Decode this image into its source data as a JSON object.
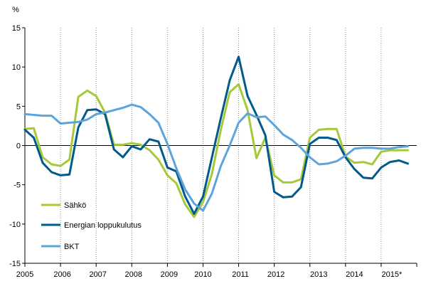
{
  "chart_data": {
    "type": "line",
    "title": "",
    "ylabel": "%",
    "xlabel": "",
    "ylim": [
      -15,
      15
    ],
    "yticks": [
      15,
      10,
      5,
      0,
      -5,
      -10,
      -15
    ],
    "grid": "vertical dotted lines at year boundaries, solid zero line",
    "x_years": [
      "2005",
      "2006",
      "2007",
      "2008",
      "2009",
      "2010",
      "2011",
      "2012",
      "2013",
      "2014",
      "2015*"
    ],
    "x_start": 2005.0,
    "x_end": 2016.0,
    "legend_position": "lower-left",
    "series": [
      {
        "name": "Sähkö",
        "color": "#A5C93A",
        "points": [
          [
            2005.0,
            2.1
          ],
          [
            2005.25,
            2.2
          ],
          [
            2005.5,
            -1.5
          ],
          [
            2005.75,
            -2.4
          ],
          [
            2006.0,
            -2.6
          ],
          [
            2006.25,
            -1.8
          ],
          [
            2006.5,
            6.2
          ],
          [
            2006.75,
            7.0
          ],
          [
            2007.0,
            6.3
          ],
          [
            2007.25,
            4.2
          ],
          [
            2007.5,
            0.1
          ],
          [
            2007.75,
            0.1
          ],
          [
            2008.0,
            0.3
          ],
          [
            2008.25,
            0.1
          ],
          [
            2008.5,
            -0.6
          ],
          [
            2008.75,
            -1.8
          ],
          [
            2009.0,
            -3.8
          ],
          [
            2009.25,
            -4.8
          ],
          [
            2009.5,
            -7.5
          ],
          [
            2009.75,
            -9.1
          ],
          [
            2010.0,
            -7.2
          ],
          [
            2010.25,
            -3.6
          ],
          [
            2010.5,
            2.0
          ],
          [
            2010.75,
            6.8
          ],
          [
            2011.0,
            7.8
          ],
          [
            2011.25,
            4.5
          ],
          [
            2011.5,
            -1.6
          ],
          [
            2011.75,
            1.0
          ],
          [
            2012.0,
            -3.8
          ],
          [
            2012.25,
            -4.7
          ],
          [
            2012.5,
            -4.7
          ],
          [
            2012.75,
            -4.3
          ],
          [
            2013.0,
            1.0
          ],
          [
            2013.25,
            2.0
          ],
          [
            2013.5,
            2.1
          ],
          [
            2013.75,
            2.1
          ],
          [
            2014.0,
            -1.4
          ],
          [
            2014.25,
            -2.2
          ],
          [
            2014.5,
            -2.1
          ],
          [
            2014.75,
            -2.4
          ],
          [
            2015.0,
            -0.8
          ],
          [
            2015.25,
            -0.6
          ],
          [
            2015.5,
            -0.6
          ],
          [
            2015.75,
            -0.6
          ]
        ]
      },
      {
        "name": "Energian loppukulutus",
        "color": "#005A8C",
        "points": [
          [
            2005.0,
            2.0
          ],
          [
            2005.25,
            1.0
          ],
          [
            2005.5,
            -2.2
          ],
          [
            2005.75,
            -3.4
          ],
          [
            2006.0,
            -3.8
          ],
          [
            2006.25,
            -3.7
          ],
          [
            2006.5,
            2.3
          ],
          [
            2006.75,
            4.5
          ],
          [
            2007.0,
            4.6
          ],
          [
            2007.25,
            4.0
          ],
          [
            2007.5,
            -0.5
          ],
          [
            2007.75,
            -1.5
          ],
          [
            2008.0,
            -0.1
          ],
          [
            2008.25,
            -0.5
          ],
          [
            2008.5,
            0.8
          ],
          [
            2008.75,
            0.5
          ],
          [
            2009.0,
            -2.8
          ],
          [
            2009.25,
            -3.3
          ],
          [
            2009.5,
            -6.5
          ],
          [
            2009.75,
            -8.7
          ],
          [
            2010.0,
            -6.5
          ],
          [
            2010.25,
            -1.5
          ],
          [
            2010.5,
            3.5
          ],
          [
            2010.75,
            8.3
          ],
          [
            2011.0,
            11.3
          ],
          [
            2011.25,
            6.3
          ],
          [
            2011.5,
            3.9
          ],
          [
            2011.75,
            1.3
          ],
          [
            2012.0,
            -5.9
          ],
          [
            2012.25,
            -6.6
          ],
          [
            2012.5,
            -6.5
          ],
          [
            2012.75,
            -5.3
          ],
          [
            2013.0,
            0.2
          ],
          [
            2013.25,
            1.0
          ],
          [
            2013.5,
            1.0
          ],
          [
            2013.75,
            0.7
          ],
          [
            2014.0,
            -1.5
          ],
          [
            2014.25,
            -3.0
          ],
          [
            2014.5,
            -4.1
          ],
          [
            2014.75,
            -4.2
          ],
          [
            2015.0,
            -2.8
          ],
          [
            2015.25,
            -2.1
          ],
          [
            2015.5,
            -1.9
          ],
          [
            2015.75,
            -2.3
          ]
        ]
      },
      {
        "name": "BKT",
        "color": "#5DA4DB",
        "points": [
          [
            2005.0,
            4.0
          ],
          [
            2005.25,
            3.9
          ],
          [
            2005.5,
            3.8
          ],
          [
            2005.75,
            3.8
          ],
          [
            2006.0,
            2.8
          ],
          [
            2006.25,
            2.9
          ],
          [
            2006.5,
            3.0
          ],
          [
            2006.75,
            3.3
          ],
          [
            2007.0,
            4.0
          ],
          [
            2007.25,
            4.2
          ],
          [
            2007.5,
            4.5
          ],
          [
            2007.75,
            4.8
          ],
          [
            2008.0,
            5.2
          ],
          [
            2008.25,
            4.9
          ],
          [
            2008.5,
            4.0
          ],
          [
            2008.75,
            2.9
          ],
          [
            2009.0,
            0.2
          ],
          [
            2009.25,
            -2.9
          ],
          [
            2009.5,
            -5.6
          ],
          [
            2009.75,
            -7.4
          ],
          [
            2010.0,
            -8.3
          ],
          [
            2010.25,
            -6.1
          ],
          [
            2010.5,
            -2.6
          ],
          [
            2010.75,
            0.0
          ],
          [
            2011.0,
            2.9
          ],
          [
            2011.25,
            4.1
          ],
          [
            2011.5,
            3.6
          ],
          [
            2011.75,
            3.7
          ],
          [
            2012.0,
            2.6
          ],
          [
            2012.25,
            1.4
          ],
          [
            2012.5,
            0.7
          ],
          [
            2012.75,
            -0.3
          ],
          [
            2013.0,
            -1.5
          ],
          [
            2013.25,
            -2.4
          ],
          [
            2013.5,
            -2.3
          ],
          [
            2013.75,
            -2.0
          ],
          [
            2014.0,
            -1.3
          ],
          [
            2014.25,
            -0.4
          ],
          [
            2014.5,
            -0.3
          ],
          [
            2014.75,
            -0.3
          ],
          [
            2015.0,
            -0.4
          ],
          [
            2015.25,
            -0.4
          ],
          [
            2015.5,
            -0.2
          ],
          [
            2015.75,
            -0.1
          ]
        ]
      }
    ]
  }
}
